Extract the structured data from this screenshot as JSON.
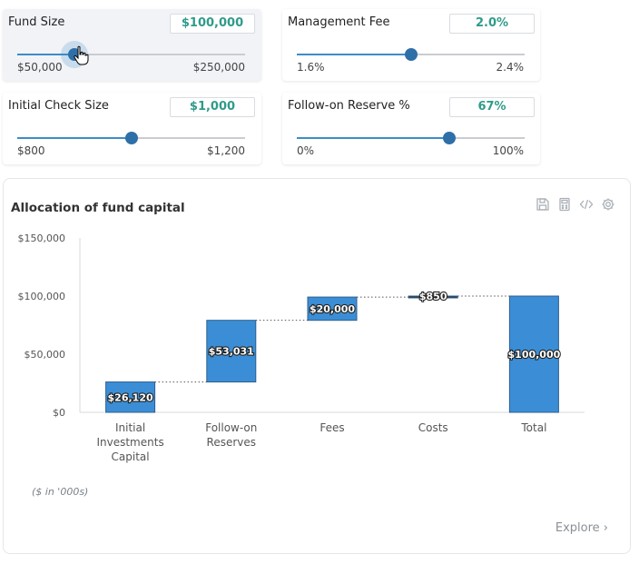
{
  "controls": {
    "fund_size": {
      "label": "Fund Size",
      "value": "$100,000",
      "min_label": "$50,000",
      "max_label": "$250,000",
      "position": 0.25
    },
    "management_fee": {
      "label": "Management Fee",
      "value": "2.0%",
      "min_label": "1.6%",
      "max_label": "2.4%",
      "position": 0.5
    },
    "initial_check": {
      "label": "Initial Check Size",
      "value": "$1,000",
      "min_label": "$800",
      "max_label": "$1,200",
      "position": 0.5
    },
    "follow_on": {
      "label": "Follow-on Reserve %",
      "value": "67%",
      "min_label": "0%",
      "max_label": "100%",
      "position": 0.67
    }
  },
  "chart": {
    "note": "($ in '000s)",
    "explore_label": "Explore ›",
    "tool_icons": [
      "save-icon",
      "calculator-icon",
      "code-icon",
      "gear-icon"
    ],
    "colors": {
      "bar": "#3b8ed5",
      "bar_stroke": "#2c5f8f",
      "accent": "#2f9b8a"
    }
  },
  "chart_data": {
    "type": "bar",
    "title": "Allocation of fund capital",
    "xlabel": "",
    "ylabel": "",
    "ylim": [
      0,
      150000
    ],
    "yticks": [
      "$0",
      "$50,000",
      "$100,000",
      "$150,000"
    ],
    "categories": [
      "Initial Investments Capital",
      "Follow-on Reserves",
      "Fees",
      "Costs",
      "Total"
    ],
    "category_lines": [
      [
        "Initial",
        "Investments",
        "Capital"
      ],
      [
        "Follow-on",
        "Reserves"
      ],
      [
        "Fees"
      ],
      [
        "Costs"
      ],
      [
        "Total"
      ]
    ],
    "values": [
      26120,
      53031,
      20000,
      850,
      100000
    ],
    "labels": [
      "$26,120",
      "$53,031",
      "$20,000",
      "$850",
      "$100,000"
    ],
    "waterfall": true,
    "legend": "none",
    "grid": false
  }
}
